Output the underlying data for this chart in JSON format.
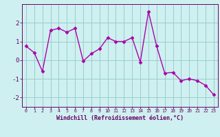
{
  "x": [
    0,
    1,
    2,
    3,
    4,
    5,
    6,
    7,
    8,
    9,
    10,
    11,
    12,
    13,
    14,
    15,
    16,
    17,
    18,
    19,
    20,
    21,
    22,
    23
  ],
  "y": [
    0.75,
    0.4,
    -0.6,
    1.6,
    1.7,
    1.5,
    1.7,
    -0.05,
    0.35,
    0.6,
    1.2,
    1.0,
    1.0,
    1.2,
    -0.1,
    2.6,
    0.75,
    -0.7,
    -0.65,
    -1.1,
    -1.0,
    -1.1,
    -1.35,
    -1.85
  ],
  "line_color": "#aa00aa",
  "marker": "D",
  "markersize": 2.5,
  "linewidth": 1.0,
  "xlabel": "Windchill (Refroidissement éolien,°C)",
  "xlabel_color": "#660066",
  "bg_color": "#cff0f0",
  "grid_color": "#99cccc",
  "tick_color": "#660066",
  "spine_color": "#660066",
  "ylim": [
    -2.5,
    3.0
  ],
  "yticks": [
    -2,
    -1,
    0,
    1,
    2
  ],
  "xlim": [
    -0.5,
    23.5
  ],
  "xticks": [
    0,
    1,
    2,
    3,
    4,
    5,
    6,
    7,
    8,
    9,
    10,
    11,
    12,
    13,
    14,
    15,
    16,
    17,
    18,
    19,
    20,
    21,
    22,
    23
  ]
}
